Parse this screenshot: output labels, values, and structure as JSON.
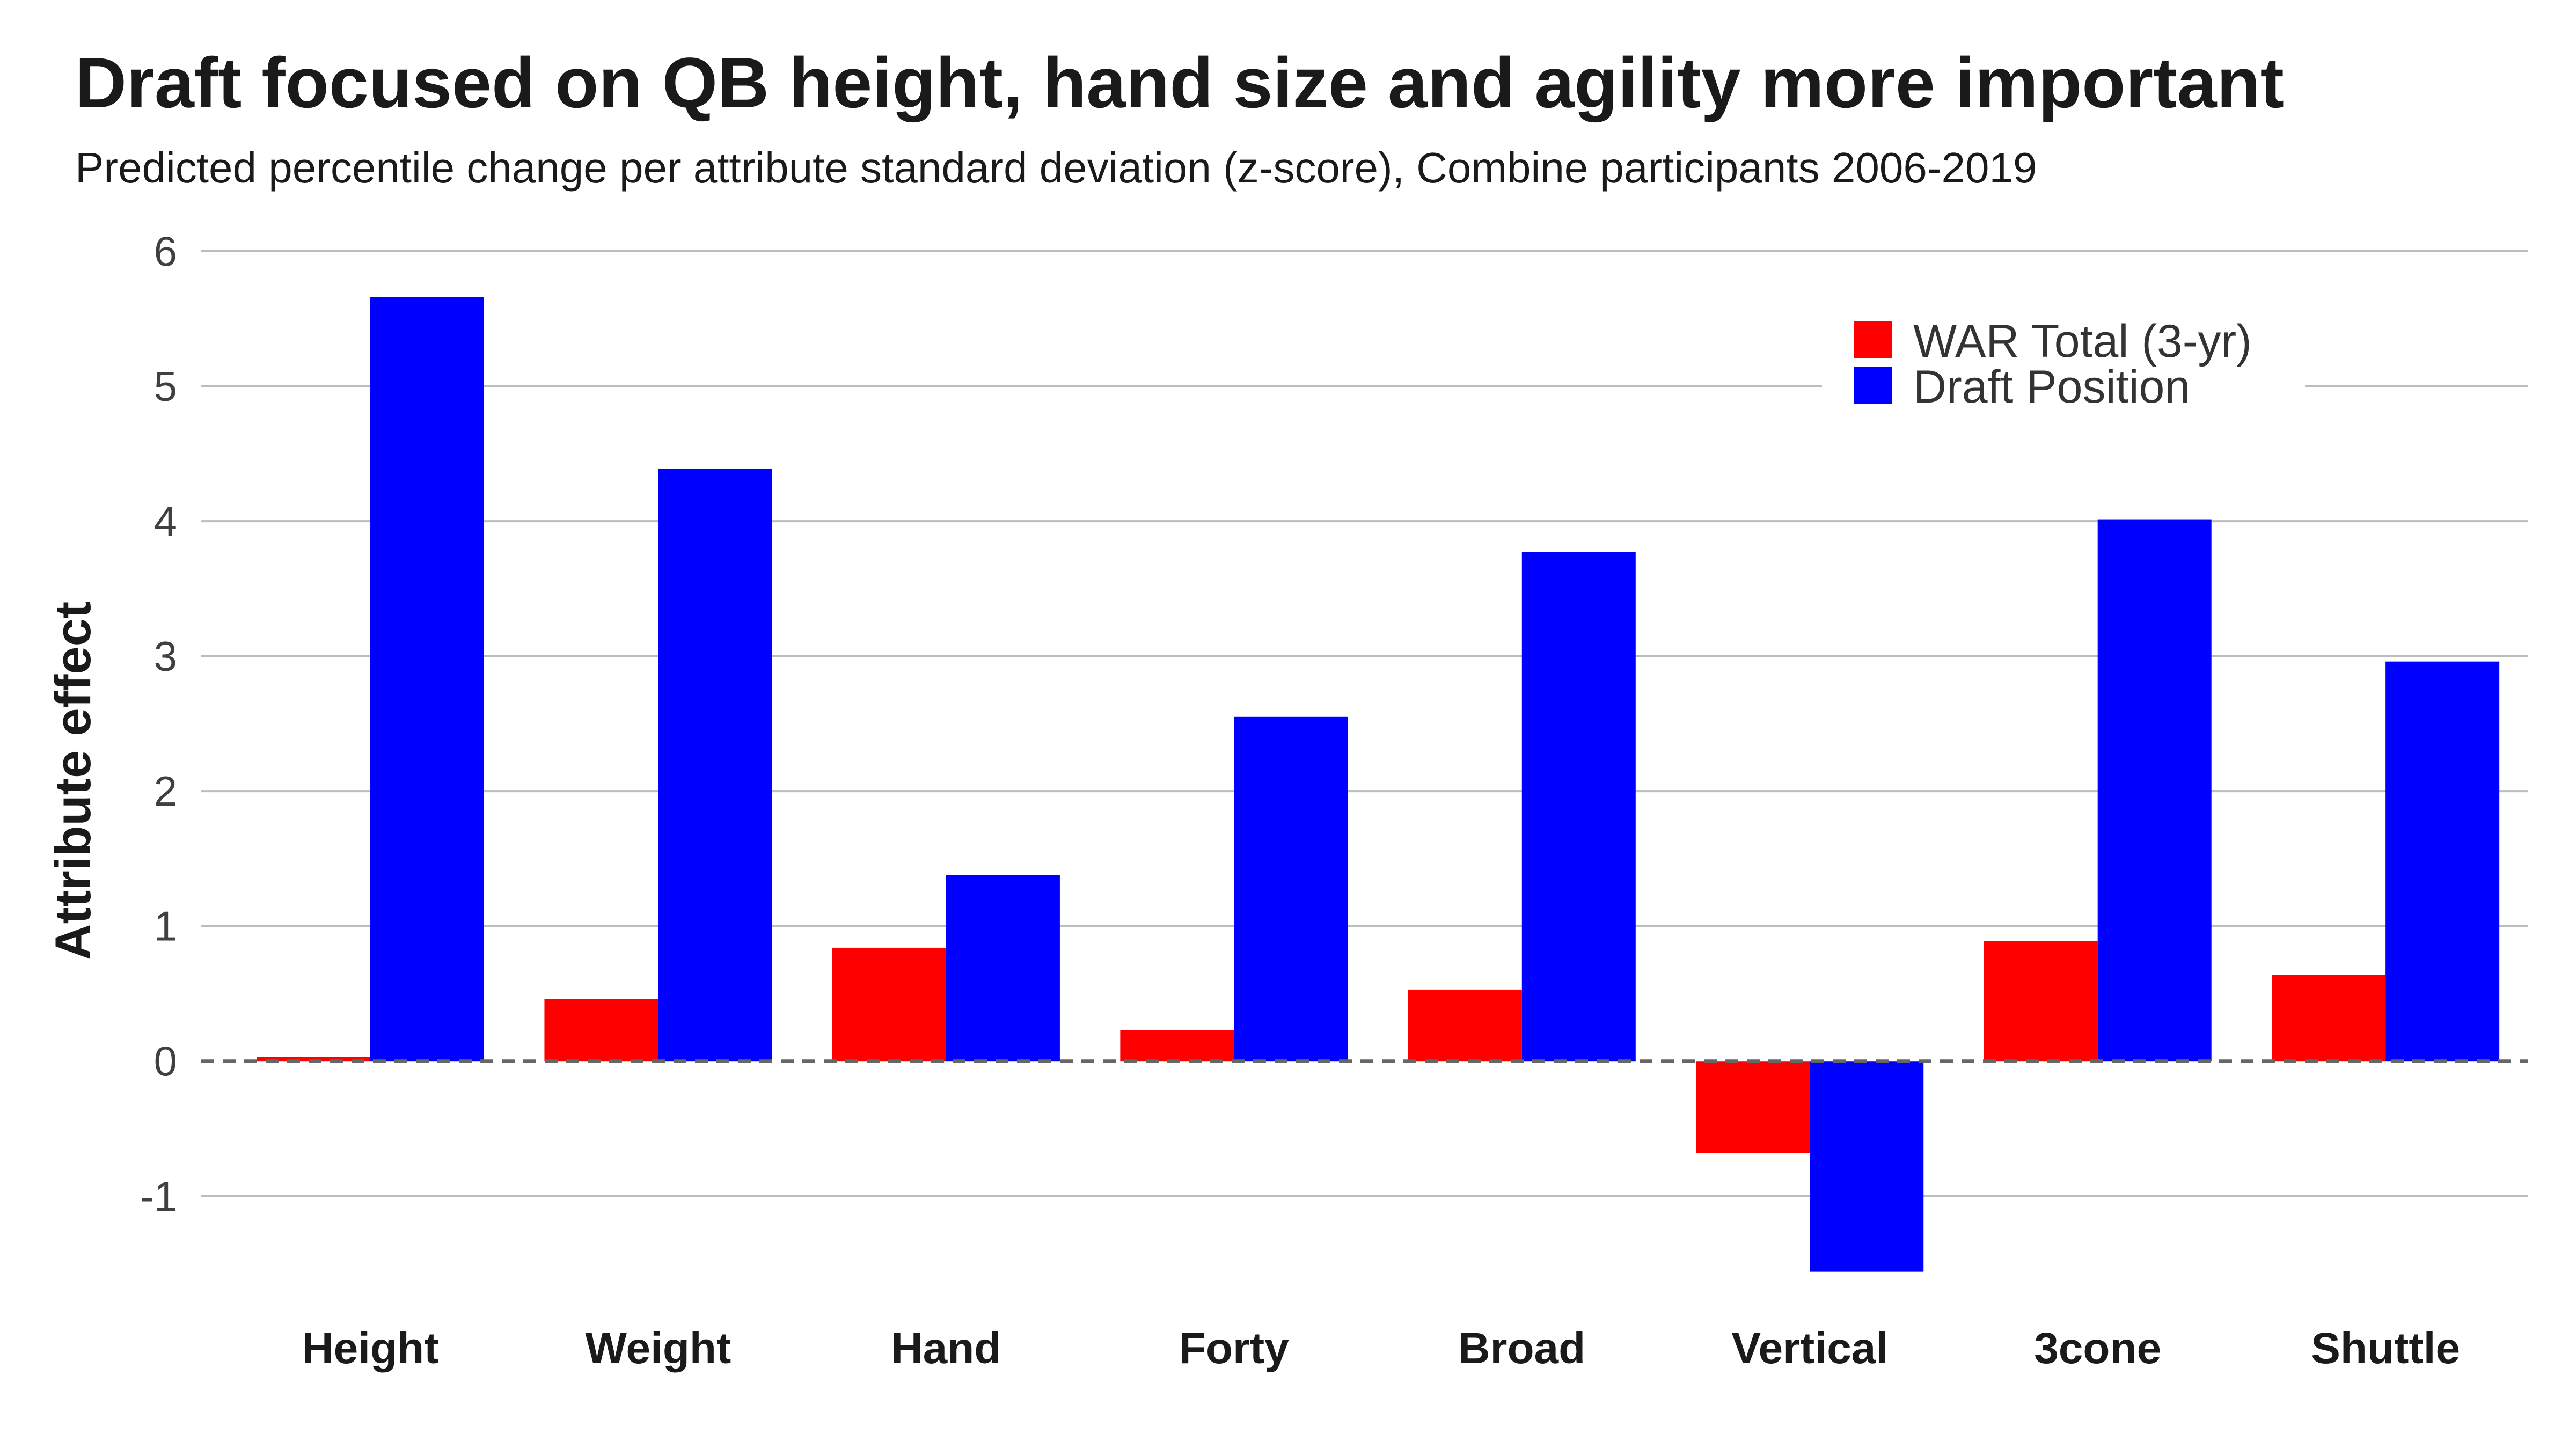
{
  "chart_data": {
    "type": "bar",
    "title": "Draft focused on QB height, hand size and agility more important",
    "subtitle": "Predicted percentile change per attribute standard deviation (z-score), Combine participants 2006-2019",
    "ylabel": "Attribute effect",
    "xlabel": "",
    "categories": [
      "Height",
      "Weight",
      "Hand",
      "Forty",
      "Broad",
      "Vertical",
      "3cone",
      "Shuttle"
    ],
    "series": [
      {
        "name": "WAR Total (3-yr)",
        "color": "#ff0000",
        "values": [
          0.03,
          0.46,
          0.84,
          0.23,
          0.53,
          -0.68,
          0.89,
          0.64
        ]
      },
      {
        "name": "Draft Position",
        "color": "#0000ff",
        "values": [
          5.66,
          4.39,
          1.38,
          2.55,
          3.77,
          -1.56,
          4.01,
          2.96
        ]
      }
    ],
    "ylim": [
      -1.8,
      6
    ],
    "yticks": [
      "-1",
      "0",
      "1",
      "2",
      "3",
      "4",
      "5",
      "6"
    ],
    "grid": true,
    "legend_position": "top-right",
    "zero_line": "dashed"
  }
}
